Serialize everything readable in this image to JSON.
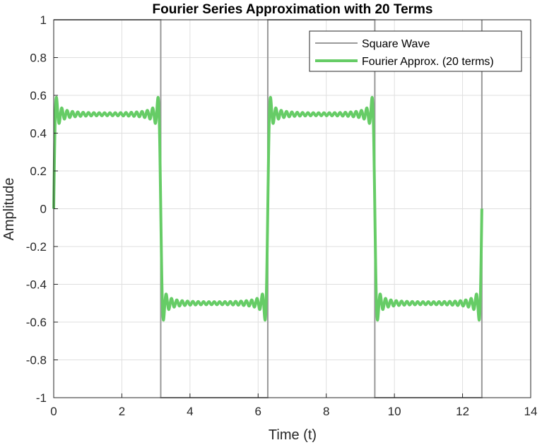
{
  "chart_data": {
    "type": "line",
    "title": "Fourier Series Approximation with 20 Terms",
    "xlabel": "Time (t)",
    "ylabel": "Amplitude",
    "xlim": [
      0,
      14
    ],
    "ylim": [
      -1,
      1
    ],
    "xticks": [
      0,
      2,
      4,
      6,
      8,
      10,
      12,
      14
    ],
    "xtick_labels": [
      "0",
      "2",
      "4",
      "6",
      "8",
      "10",
      "12",
      "14"
    ],
    "yticks": [
      -1,
      -0.8,
      -0.6,
      -0.4,
      -0.2,
      0,
      0.2,
      0.4,
      0.6,
      0.8,
      1
    ],
    "ytick_labels": [
      "-1",
      "-0.8",
      "-0.6",
      "-0.4",
      "-0.2",
      "0",
      "0.2",
      "0.4",
      "0.6",
      "0.8",
      "1"
    ],
    "grid": true,
    "legend_position": "top-right",
    "series": [
      {
        "name": "Square Wave",
        "color": "#999999",
        "points": [
          [
            0,
            1
          ],
          [
            3.1416,
            1
          ],
          [
            3.1416,
            -1
          ],
          [
            6.2832,
            -1
          ],
          [
            6.2832,
            1
          ],
          [
            9.4248,
            1
          ],
          [
            9.4248,
            -1
          ],
          [
            12.5664,
            -1
          ],
          [
            12.5664,
            1
          ]
        ]
      },
      {
        "name": "Fourier Approx. (20 terms)",
        "color": "#66cc66",
        "terms": 20,
        "amplitude_factor": 0.5,
        "x_range": [
          0,
          12.5664
        ]
      }
    ]
  }
}
